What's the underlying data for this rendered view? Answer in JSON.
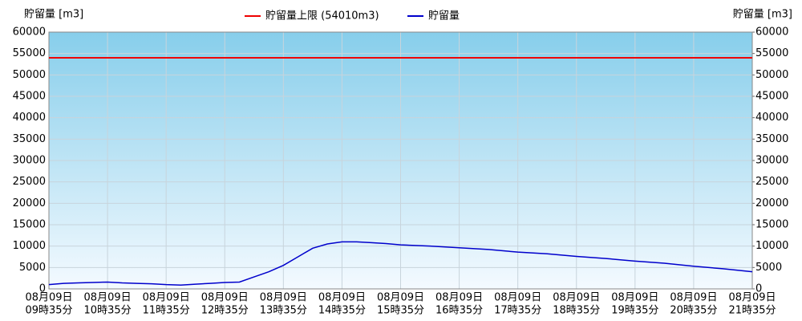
{
  "chart_data": {
    "type": "line",
    "y_label": "貯留量 [m3]",
    "y2_label": "貯留量 [m3]",
    "reference_line": {
      "name": "貯留量上限 (54010m3)",
      "value": 54010,
      "color": "#ee0000"
    },
    "x": [
      575,
      590,
      605,
      620,
      635,
      650,
      665,
      680,
      695,
      710,
      725,
      740,
      755,
      770,
      785,
      800,
      815,
      830,
      845,
      860,
      875,
      890,
      905,
      920,
      935,
      965,
      995,
      1025,
      1055,
      1085,
      1115,
      1145,
      1175,
      1205,
      1235,
      1265,
      1295
    ],
    "series": [
      {
        "name": "貯留量",
        "color": "#0000cc",
        "values": [
          1000,
          1300,
          1400,
          1500,
          1600,
          1400,
          1300,
          1200,
          1000,
          900,
          1100,
          1300,
          1500,
          1600,
          2800,
          4000,
          5500,
          7500,
          9500,
          10500,
          11000,
          11000,
          10800,
          10600,
          10300,
          10000,
          9600,
          9200,
          8600,
          8200,
          7600,
          7100,
          6500,
          6000,
          5300,
          4700,
          4000
        ]
      }
    ],
    "xlim": [
      575,
      1295
    ],
    "xticks": [
      {
        "value": 575,
        "label": [
          "08月09日",
          "09時35分"
        ]
      },
      {
        "value": 635,
        "label": [
          "08月09日",
          "10時35分"
        ]
      },
      {
        "value": 695,
        "label": [
          "08月09日",
          "11時35分"
        ]
      },
      {
        "value": 755,
        "label": [
          "08月09日",
          "12時35分"
        ]
      },
      {
        "value": 815,
        "label": [
          "08月09日",
          "13時35分"
        ]
      },
      {
        "value": 875,
        "label": [
          "08月09日",
          "14時35分"
        ]
      },
      {
        "value": 935,
        "label": [
          "08月09日",
          "15時35分"
        ]
      },
      {
        "value": 995,
        "label": [
          "08月09日",
          "16時35分"
        ]
      },
      {
        "value": 1055,
        "label": [
          "08月09日",
          "17時35分"
        ]
      },
      {
        "value": 1115,
        "label": [
          "08月09日",
          "18時35分"
        ]
      },
      {
        "value": 1175,
        "label": [
          "08月09日",
          "19時35分"
        ]
      },
      {
        "value": 1235,
        "label": [
          "08月09日",
          "20時35分"
        ]
      },
      {
        "value": 1295,
        "label": [
          "08月09日",
          "21時35分"
        ]
      }
    ],
    "ylim": [
      0,
      60000
    ],
    "yticks": [
      0,
      5000,
      10000,
      15000,
      20000,
      25000,
      30000,
      35000,
      40000,
      45000,
      50000,
      55000,
      60000
    ],
    "y2lim": [
      0,
      60000
    ],
    "y2ticks": [
      0,
      5000,
      10000,
      15000,
      20000,
      25000,
      30000,
      35000,
      40000,
      45000,
      50000,
      55000,
      60000
    ],
    "grid": true
  }
}
